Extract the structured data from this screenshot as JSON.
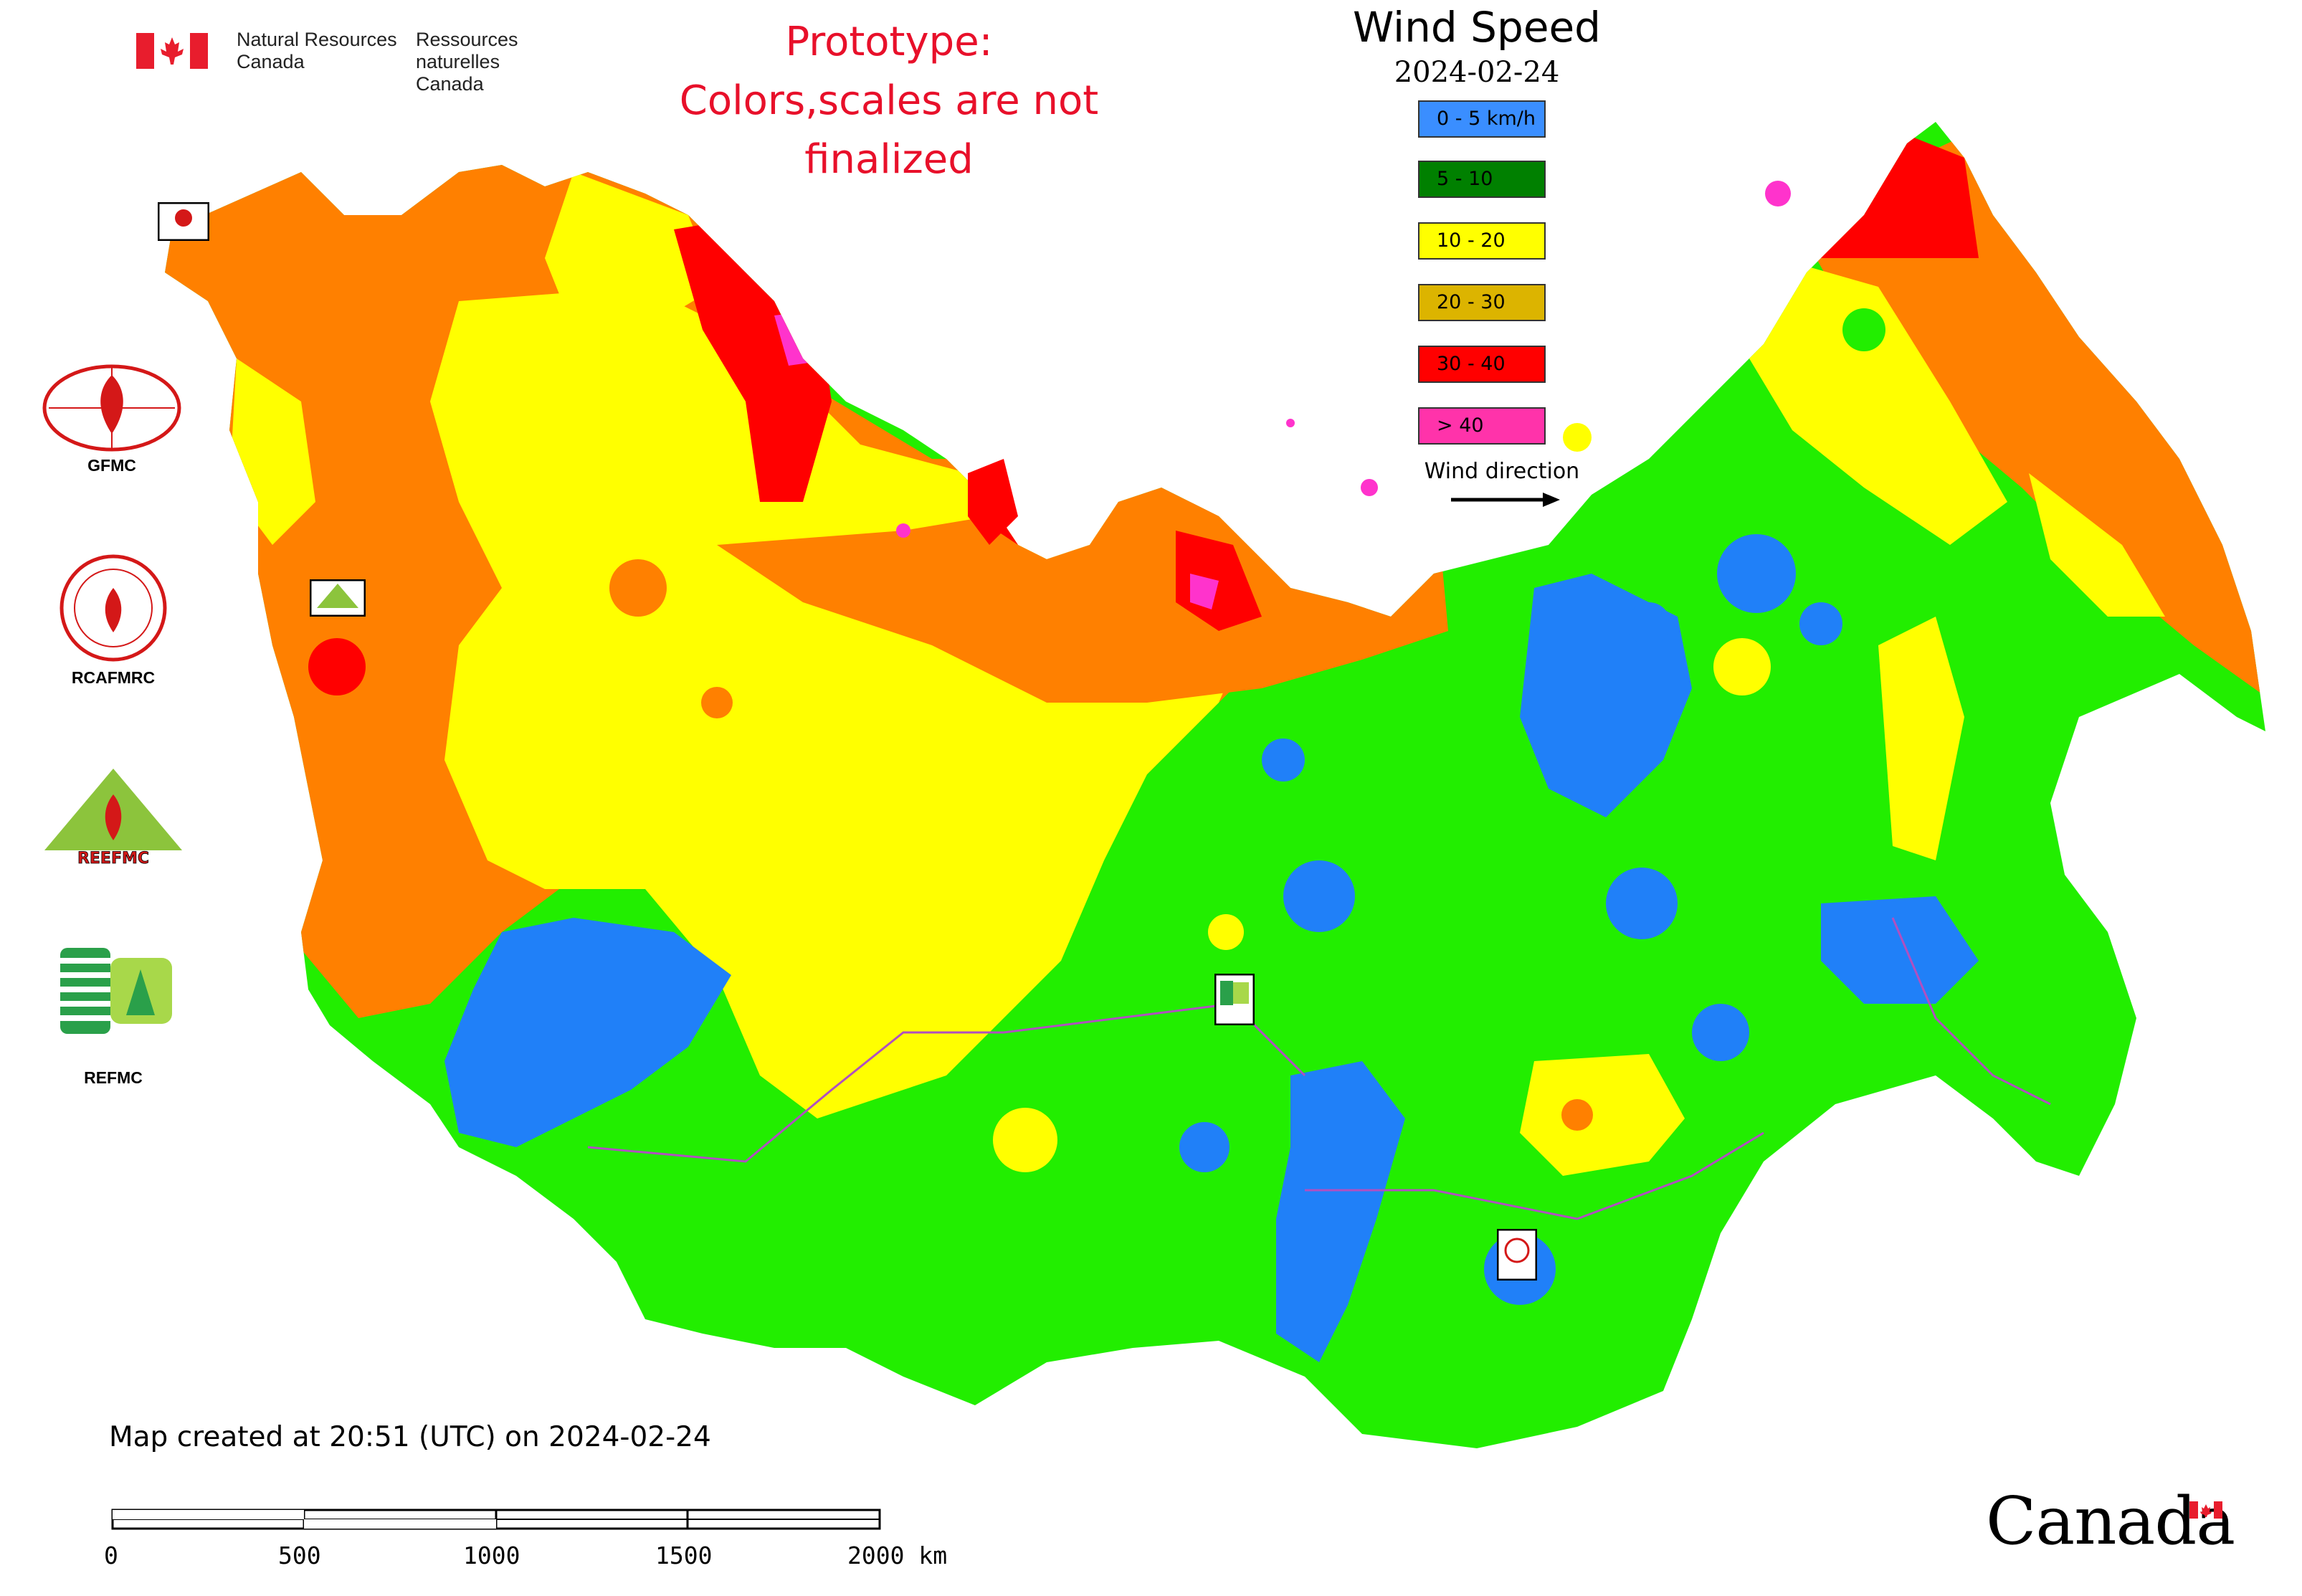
{
  "agency": {
    "name_en_line1": "Natural Resources",
    "name_en_line2": "Canada",
    "name_fr_line1": "Ressources naturelles",
    "name_fr_line2": "Canada",
    "wordmark": "Canada"
  },
  "disclaimer": {
    "line1": "Prototype:",
    "line2": "Colors,scales are not finalized"
  },
  "legend": {
    "title": "Wind Speed",
    "date": "2024-02-24",
    "items": [
      {
        "label": "0 - 5 km/h",
        "color": "#3a8eff"
      },
      {
        "label": "5 - 10",
        "color": "#008000"
      },
      {
        "label": "10 - 20",
        "color": "#ffff00"
      },
      {
        "label": "20 - 30",
        "color": "#dcb400"
      },
      {
        "label": "30 - 40",
        "color": "#ff0000"
      },
      {
        "label": "> 40",
        "color": "#ff33aa"
      }
    ],
    "wind_direction_label": "Wind direction"
  },
  "map_colors": {
    "calm": "#2080f8",
    "light": "#22ee00",
    "moderate": "#ffff00",
    "fresh": "#ff8000",
    "strong": "#ff0000",
    "gale": "#ff33cc",
    "border": "#b050c0",
    "water": "#ffffff"
  },
  "logos": [
    {
      "label": "GFMC"
    },
    {
      "label": "RCAFMRC"
    },
    {
      "label": "REEFMC"
    },
    {
      "label": "REFMC"
    }
  ],
  "footer": {
    "created": "Map created at 20:51 (UTC) on 2024-02-24"
  },
  "scale_bar": {
    "ticks": [
      "0",
      "500",
      "1000",
      "1500",
      "2000 km"
    ]
  }
}
